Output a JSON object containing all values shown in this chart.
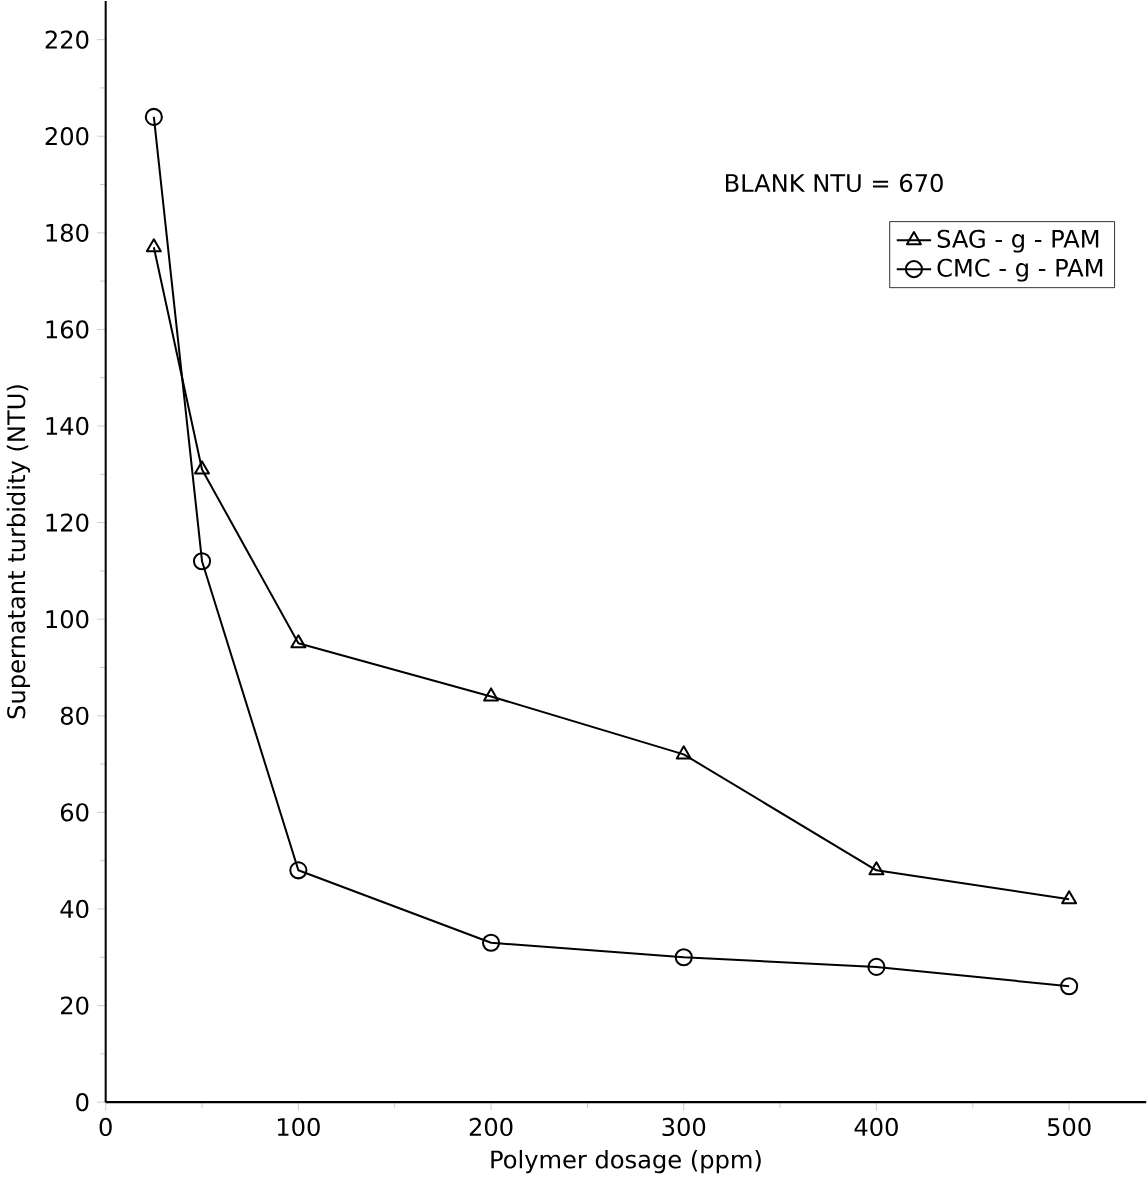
{
  "chart_data": {
    "type": "line",
    "xlabel": "Polymer dosage (ppm)",
    "ylabel": "Supernatant turbidity (NTU)",
    "annotations": [
      "BLANK NTU = 670"
    ],
    "x": [
      25,
      50,
      100,
      200,
      300,
      400,
      500
    ],
    "series": [
      {
        "name": "SAG - g - PAM",
        "color": "#000000",
        "marker": "triangle",
        "values": [
          177,
          131,
          95,
          84,
          72,
          48,
          42
        ]
      },
      {
        "name": "CMC - g - PAM",
        "color": "#000000",
        "marker": "circle",
        "values": [
          204,
          112,
          48,
          33,
          30,
          28,
          24
        ]
      }
    ],
    "xlim": [
      0,
      540
    ],
    "ylim": [
      0,
      228
    ],
    "xticks": [
      0,
      100,
      200,
      300,
      400,
      500
    ],
    "yticks": [
      0,
      20,
      40,
      60,
      80,
      100,
      120,
      140,
      160,
      180,
      200,
      220
    ],
    "grid": false,
    "legend": "top right",
    "line_style": "solid"
  }
}
